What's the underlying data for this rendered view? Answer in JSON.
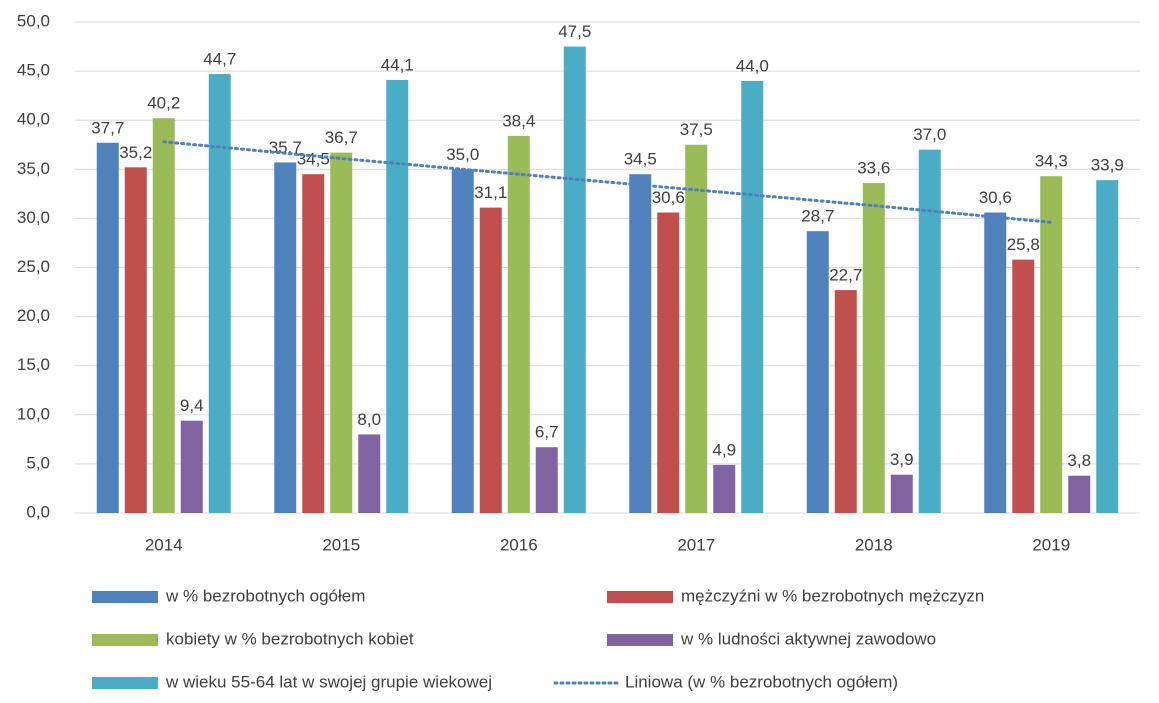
{
  "chart_data": {
    "type": "bar",
    "categories": [
      "2014",
      "2015",
      "2016",
      "2017",
      "2018",
      "2019"
    ],
    "series": [
      {
        "name": "w % bezrobotnych ogółem",
        "color": "#4f81bd",
        "values": [
          37.7,
          35.7,
          35.0,
          34.5,
          28.7,
          30.6
        ],
        "value_labels": [
          "37,7",
          "35,7",
          "35,0",
          "34,5",
          "28,7",
          "30,6"
        ]
      },
      {
        "name": "mężczyźni w % bezrobotnych mężczyzn",
        "color": "#c0504d",
        "values": [
          35.2,
          34.5,
          31.1,
          30.6,
          22.7,
          25.8
        ],
        "value_labels": [
          "35,2",
          "34,5",
          "31,1",
          "30,6",
          "22,7",
          "25,8"
        ]
      },
      {
        "name": "kobiety w % bezrobotnych kobiet",
        "color": "#9bbb59",
        "values": [
          40.2,
          36.7,
          38.4,
          37.5,
          33.6,
          34.3
        ],
        "value_labels": [
          "40,2",
          "36,7",
          "38,4",
          "37,5",
          "33,6",
          "34,3"
        ]
      },
      {
        "name": "w % ludności aktywnej zawodowo",
        "color": "#8064a2",
        "values": [
          9.4,
          8.0,
          6.7,
          4.9,
          3.9,
          3.8
        ],
        "value_labels": [
          "9,4",
          "8,0",
          "6,7",
          "4,9",
          "3,9",
          "3,8"
        ]
      },
      {
        "name": "w wieku 55-64 lat w swojej grupie wiekowej",
        "color": "#4bacc6",
        "values": [
          44.7,
          44.1,
          47.5,
          44.0,
          37.0,
          33.9
        ],
        "value_labels": [
          "44,7",
          "44,1",
          "47,5",
          "44,0",
          "37,0",
          "33,9"
        ]
      },
      {
        "name": "Liniowa (w % bezrobotnych ogółem)",
        "color": "#4f81bd",
        "type": "line",
        "dash": "dotted",
        "values": [
          37.8,
          36.1,
          34.5,
          32.9,
          31.3,
          29.6
        ]
      }
    ],
    "ylim": [
      0,
      50
    ],
    "yticks": [
      {
        "value": 0,
        "label": "0,0"
      },
      {
        "value": 5,
        "label": "5,0"
      },
      {
        "value": 10,
        "label": "10,0"
      },
      {
        "value": 15,
        "label": "15,0"
      },
      {
        "value": 20,
        "label": "20,0"
      },
      {
        "value": 25,
        "label": "25,0"
      },
      {
        "value": 30,
        "label": "30,0"
      },
      {
        "value": 35,
        "label": "35,0"
      },
      {
        "value": 40,
        "label": "40,0"
      },
      {
        "value": 45,
        "label": "45,0"
      },
      {
        "value": 50,
        "label": "50,0"
      }
    ],
    "grid": true,
    "legend": "bottom"
  }
}
